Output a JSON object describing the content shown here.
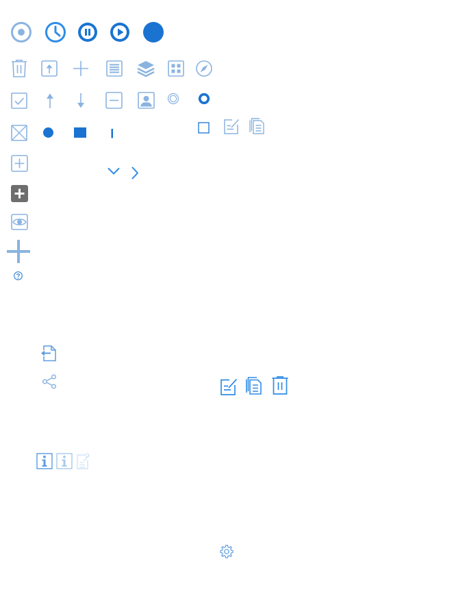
{
  "palette": {
    "light_blue": "#8ab3e0",
    "mid_blue": "#5b9bde",
    "bright_blue": "#2f8ce6",
    "dark_blue": "#1a73d1",
    "gray": "#6e6e6e",
    "pale_blue": "#d3e3f5"
  },
  "icons": [
    "record-circle-icon",
    "clock-icon",
    "pause-circle-icon",
    "play-circle-icon",
    "filled-circle-icon",
    "trash-icon",
    "upload-box-icon",
    "plus-thin-icon",
    "list-box-icon",
    "layers-icon",
    "grid-box-icon",
    "compass-icon",
    "checkbox-checked-icon",
    "arrow-up-icon",
    "arrow-down-icon",
    "minus-box-icon",
    "contact-box-icon",
    "radio-unselected-icon",
    "radio-selected-icon",
    "checkbox-x-icon",
    "dot-icon",
    "stop-square-icon",
    "text-cursor-icon",
    "checkbox-empty-icon",
    "compose-icon",
    "copy-icon",
    "plus-box-icon",
    "chevron-down-icon",
    "chevron-right-icon",
    "plus-box-filled-icon",
    "eye-box-icon",
    "plus-large-icon",
    "help-circle-icon",
    "file-import-icon",
    "share-icon",
    "compose-icon",
    "copy-icon",
    "trash-icon",
    "info-box-icon",
    "info-box-light-icon",
    "note-edit-icon",
    "gear-icon"
  ]
}
